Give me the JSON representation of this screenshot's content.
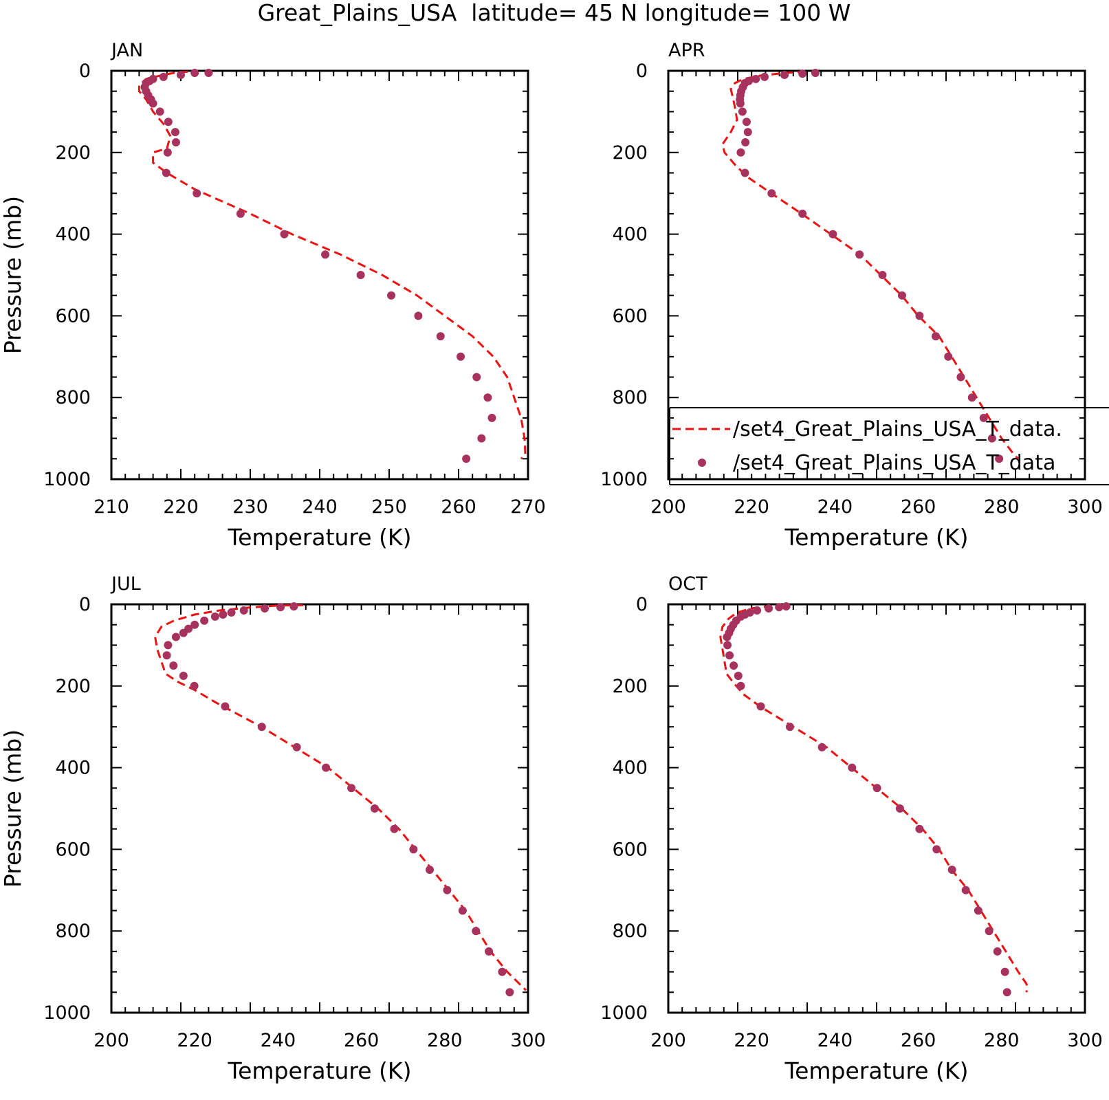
{
  "figure": {
    "title": "Great_Plains_USA  latitude= 45 N longitude= 100 W"
  },
  "colors": {
    "model_line": "#ee1111",
    "obs_points": "#a8325e",
    "axes": "#000000"
  },
  "chart_data": [
    {
      "type": "line",
      "panel": "JAN",
      "xlabel": "Temperature (K)",
      "ylabel": "Pressure (mb)",
      "xlim": [
        210,
        270
      ],
      "ylim": [
        1000,
        0
      ],
      "x_ticks": [
        210,
        220,
        230,
        240,
        250,
        260,
        270
      ],
      "y_ticks": [
        0,
        200,
        400,
        600,
        800,
        1000
      ],
      "grid": false,
      "series": [
        {
          "style": "dashed-line",
          "points": [
            [
              221,
              2
            ],
            [
              219,
              5
            ],
            [
              217,
              12
            ],
            [
              215,
              20
            ],
            [
              214,
              35
            ],
            [
              214,
              50
            ],
            [
              215,
              70
            ],
            [
              216,
              100
            ],
            [
              217.5,
              130
            ],
            [
              218.5,
              160
            ],
            [
              218,
              190
            ],
            [
              216,
              200
            ],
            [
              216,
              225
            ],
            [
              218,
              250
            ],
            [
              222,
              290
            ],
            [
              230,
              350
            ],
            [
              236,
              400
            ],
            [
              243,
              450
            ],
            [
              249,
              500
            ],
            [
              254,
              550
            ],
            [
              258,
              600
            ],
            [
              262,
              650
            ],
            [
              265,
              700
            ],
            [
              267,
              750
            ],
            [
              268,
              800
            ],
            [
              269,
              850
            ],
            [
              269.5,
              900
            ],
            [
              269.6,
              940
            ],
            [
              269,
              950
            ]
          ]
        },
        {
          "style": "markers",
          "points": [
            [
              224,
              5
            ],
            [
              222,
              5
            ],
            [
              220,
              10
            ],
            [
              217.5,
              15
            ],
            [
              216,
              20
            ],
            [
              215.5,
              25
            ],
            [
              215,
              30
            ],
            [
              214.8,
              40
            ],
            [
              215,
              50
            ],
            [
              215.3,
              60
            ],
            [
              215.7,
              70
            ],
            [
              216,
              80
            ],
            [
              217,
              100
            ],
            [
              218.2,
              125
            ],
            [
              219.2,
              150
            ],
            [
              219.3,
              175
            ],
            [
              218.1,
              200
            ],
            [
              217.9,
              250
            ],
            [
              222.3,
              300
            ],
            [
              228.6,
              350
            ],
            [
              234.9,
              400
            ],
            [
              240.8,
              450
            ],
            [
              245.9,
              500
            ],
            [
              250.3,
              550
            ],
            [
              254.2,
              600
            ],
            [
              257.4,
              650
            ],
            [
              260.3,
              700
            ],
            [
              262.6,
              750
            ],
            [
              264.2,
              800
            ],
            [
              264.8,
              850
            ],
            [
              263.3,
              900
            ],
            [
              261.1,
              950
            ]
          ]
        }
      ]
    },
    {
      "type": "line",
      "panel": "APR",
      "xlabel": "Temperature (K)",
      "ylabel": "",
      "xlim": [
        200,
        300
      ],
      "ylim": [
        1000,
        0
      ],
      "x_ticks": [
        200,
        220,
        240,
        260,
        280,
        300
      ],
      "y_ticks": [
        0,
        200,
        400,
        600,
        800,
        1000
      ],
      "grid": false,
      "legend": {
        "placement": "bottom-right",
        "entries": [
          {
            "style": "dashed-line",
            "label": "/set4_Great_Plains_USA_T_data."
          },
          {
            "style": "markers",
            "label": "/set4_Great_Plains_USA_T_data"
          }
        ]
      },
      "series": [
        {
          "style": "dashed-line",
          "points": [
            [
              233,
              2
            ],
            [
              228,
              5
            ],
            [
              222,
              12
            ],
            [
              218,
              20
            ],
            [
              216,
              30
            ],
            [
              215,
              45
            ],
            [
              215.5,
              65
            ],
            [
              216,
              90
            ],
            [
              216.5,
              120
            ],
            [
              215,
              150
            ],
            [
              213,
              180
            ],
            [
              213.5,
              200
            ],
            [
              216,
              230
            ],
            [
              219,
              260
            ],
            [
              224,
              295
            ],
            [
              232,
              350
            ],
            [
              239,
              400
            ],
            [
              246,
              450
            ],
            [
              251,
              500
            ],
            [
              256,
              550
            ],
            [
              260,
              600
            ],
            [
              265,
              650
            ],
            [
              268,
              700
            ],
            [
              271,
              750
            ],
            [
              274,
              800
            ],
            [
              277,
              850
            ],
            [
              280,
              900
            ],
            [
              283,
              940
            ],
            [
              284,
              950
            ]
          ]
        },
        {
          "style": "markers",
          "points": [
            [
              235.3,
              5
            ],
            [
              232.2,
              7
            ],
            [
              227.9,
              10
            ],
            [
              223.1,
              15
            ],
            [
              221,
              20
            ],
            [
              219.3,
              25
            ],
            [
              218.4,
              30
            ],
            [
              217.9,
              40
            ],
            [
              217.5,
              50
            ],
            [
              217.3,
              60
            ],
            [
              217.2,
              70
            ],
            [
              217.3,
              80
            ],
            [
              217.8,
              100
            ],
            [
              218.8,
              125
            ],
            [
              219.1,
              150
            ],
            [
              218.5,
              175
            ],
            [
              217.4,
              200
            ],
            [
              218.4,
              250
            ],
            [
              224.8,
              300
            ],
            [
              232.2,
              350
            ],
            [
              239.5,
              400
            ],
            [
              245.9,
              450
            ],
            [
              251.4,
              500
            ],
            [
              256.1,
              550
            ],
            [
              260.3,
              600
            ],
            [
              264.2,
              650
            ],
            [
              267.2,
              700
            ],
            [
              270.2,
              750
            ],
            [
              272.9,
              800
            ],
            [
              275.7,
              850
            ],
            [
              277.7,
              900
            ],
            [
              279.4,
              950
            ]
          ]
        }
      ]
    },
    {
      "type": "line",
      "panel": "JUL",
      "xlabel": "Temperature (K)",
      "ylabel": "Pressure (mb)",
      "xlim": [
        200,
        300
      ],
      "ylim": [
        1000,
        0
      ],
      "x_ticks": [
        200,
        220,
        240,
        260,
        280,
        300
      ],
      "y_ticks": [
        0,
        200,
        400,
        600,
        800,
        1000
      ],
      "grid": false,
      "series": [
        {
          "style": "dashed-line",
          "points": [
            [
              246,
              2
            ],
            [
              240,
              3
            ],
            [
              233,
              8
            ],
            [
              226,
              15
            ],
            [
              220,
              25
            ],
            [
              215,
              40
            ],
            [
              212,
              55
            ],
            [
              210.5,
              80
            ],
            [
              211,
              110
            ],
            [
              212,
              140
            ],
            [
              213,
              170
            ],
            [
              216,
              190
            ],
            [
              220,
              210
            ],
            [
              225,
              240
            ],
            [
              236,
              300
            ],
            [
              244,
              350
            ],
            [
              252,
              400
            ],
            [
              258,
              450
            ],
            [
              264,
              500
            ],
            [
              269,
              550
            ],
            [
              273,
              600
            ],
            [
              277,
              650
            ],
            [
              281,
              700
            ],
            [
              285,
              750
            ],
            [
              288,
              800
            ],
            [
              291,
              850
            ],
            [
              295,
              900
            ],
            [
              298,
              930
            ],
            [
              299.5,
              945
            ]
          ]
        },
        {
          "style": "markers",
          "points": [
            [
              243.8,
              5
            ],
            [
              240.6,
              7
            ],
            [
              236.8,
              10
            ],
            [
              231.8,
              15
            ],
            [
              228.8,
              20
            ],
            [
              226.8,
              25
            ],
            [
              224.9,
              30
            ],
            [
              222.3,
              40
            ],
            [
              220,
              50
            ],
            [
              218.5,
              60
            ],
            [
              217.3,
              70
            ],
            [
              215.5,
              80
            ],
            [
              213.6,
              100
            ],
            [
              213.3,
              125
            ],
            [
              214.9,
              150
            ],
            [
              217.3,
              175
            ],
            [
              219.9,
              200
            ],
            [
              227.3,
              250
            ],
            [
              236.1,
              300
            ],
            [
              244.5,
              350
            ],
            [
              251.5,
              400
            ],
            [
              257.6,
              450
            ],
            [
              263.2,
              500
            ],
            [
              267.9,
              550
            ],
            [
              272.5,
              600
            ],
            [
              276.4,
              650
            ],
            [
              280.6,
              700
            ],
            [
              284.3,
              750
            ],
            [
              287.5,
              800
            ],
            [
              290.6,
              850
            ],
            [
              293.8,
              900
            ],
            [
              295.6,
              950
            ]
          ]
        }
      ]
    },
    {
      "type": "line",
      "panel": "OCT",
      "xlabel": "Temperature (K)",
      "ylabel": "",
      "xlim": [
        200,
        300
      ],
      "ylim": [
        1000,
        0
      ],
      "x_ticks": [
        200,
        220,
        240,
        260,
        280,
        300
      ],
      "y_ticks": [
        0,
        200,
        400,
        600,
        800,
        1000
      ],
      "grid": false,
      "series": [
        {
          "style": "dashed-line",
          "points": [
            [
              228,
              2
            ],
            [
              224,
              5
            ],
            [
              220,
              10
            ],
            [
              216.5,
              20
            ],
            [
              214.5,
              35
            ],
            [
              213,
              55
            ],
            [
              212.5,
              80
            ],
            [
              213,
              110
            ],
            [
              213.5,
              140
            ],
            [
              214,
              170
            ],
            [
              215.5,
              190
            ],
            [
              218,
              220
            ],
            [
              222,
              250
            ],
            [
              230,
              300
            ],
            [
              238,
              350
            ],
            [
              244,
              400
            ],
            [
              250,
              450
            ],
            [
              256,
              500
            ],
            [
              261,
              550
            ],
            [
              265,
              600
            ],
            [
              268,
              650
            ],
            [
              272,
              700
            ],
            [
              275,
              750
            ],
            [
              278,
              800
            ],
            [
              281,
              850
            ],
            [
              284,
              900
            ],
            [
              286,
              930
            ],
            [
              286,
              950
            ]
          ]
        },
        {
          "style": "markers",
          "points": [
            [
              228.3,
              5
            ],
            [
              226.6,
              7
            ],
            [
              224.1,
              10
            ],
            [
              221.3,
              15
            ],
            [
              219.6,
              20
            ],
            [
              218.4,
              25
            ],
            [
              217.4,
              30
            ],
            [
              216.3,
              40
            ],
            [
              215.6,
              50
            ],
            [
              215,
              60
            ],
            [
              214.6,
              70
            ],
            [
              214.1,
              80
            ],
            [
              214.2,
              100
            ],
            [
              214.7,
              125
            ],
            [
              215.7,
              150
            ],
            [
              216.8,
              175
            ],
            [
              217.4,
              200
            ],
            [
              222.2,
              250
            ],
            [
              229.2,
              300
            ],
            [
              236.9,
              350
            ],
            [
              244.1,
              400
            ],
            [
              250.1,
              450
            ],
            [
              255.6,
              500
            ],
            [
              260.3,
              550
            ],
            [
              264.4,
              600
            ],
            [
              268.1,
              650
            ],
            [
              271.4,
              700
            ],
            [
              274.4,
              750
            ],
            [
              277,
              800
            ],
            [
              279,
              850
            ],
            [
              280.8,
              900
            ],
            [
              281.3,
              950
            ]
          ]
        }
      ]
    }
  ]
}
